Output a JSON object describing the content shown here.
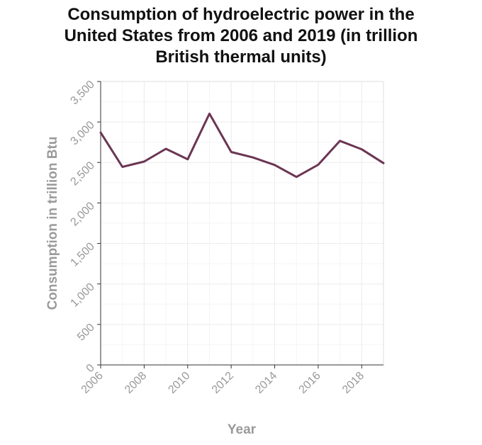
{
  "chart_data": {
    "type": "line",
    "title_lines": [
      "Consumption of hydroelectric power in the",
      "United States from 2006 and 2019 (in trillion",
      "British thermal units)"
    ],
    "xlabel": "Year",
    "ylabel": "Consumption in trillion Btu",
    "xlim": [
      2006,
      2019
    ],
    "ylim": [
      0,
      3500
    ],
    "x_ticks": [
      2006,
      2008,
      2010,
      2012,
      2014,
      2016,
      2018
    ],
    "x_tick_labels": [
      "2006",
      "2008",
      "2010",
      "2012",
      "2014",
      "2016",
      "2018"
    ],
    "y_ticks": [
      0,
      500,
      1000,
      1500,
      2000,
      2500,
      3000,
      3500
    ],
    "y_tick_labels": [
      "0",
      "500",
      "1,000",
      "1,500",
      "2,000",
      "2,500",
      "3,000",
      "3,500"
    ],
    "grid": true,
    "line_color": "#6b3553",
    "x": [
      2006,
      2007,
      2008,
      2009,
      2010,
      2011,
      2012,
      2013,
      2014,
      2015,
      2016,
      2017,
      2018,
      2019
    ],
    "y": [
      2869,
      2446,
      2511,
      2669,
      2539,
      3103,
      2629,
      2562,
      2469,
      2321,
      2472,
      2767,
      2663,
      2492
    ]
  }
}
